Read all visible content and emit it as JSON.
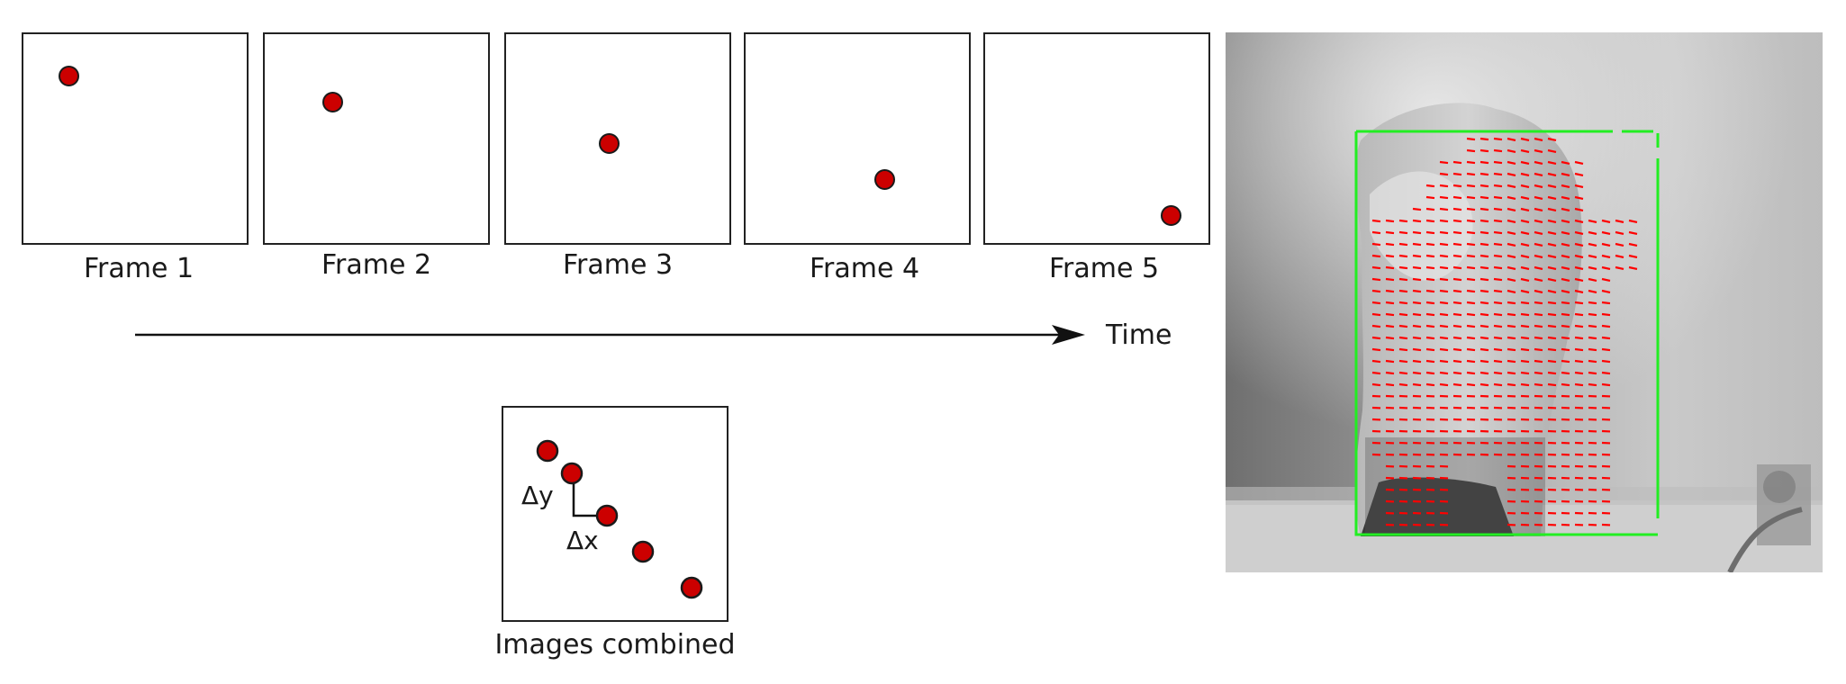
{
  "frames": [
    {
      "label": "Frame 1"
    },
    {
      "label": "Frame 2"
    },
    {
      "label": "Frame 3"
    },
    {
      "label": "Frame 4"
    },
    {
      "label": "Frame 5"
    }
  ],
  "timeline": {
    "label": "Time"
  },
  "combined": {
    "label": "Images combined",
    "dx_label": "Δx",
    "dy_label": "Δy"
  },
  "colors": {
    "dot_fill": "#cc0000",
    "flow_vectors": "#ff0000",
    "bounding_box": "#22ee22",
    "outline": "#222222"
  }
}
